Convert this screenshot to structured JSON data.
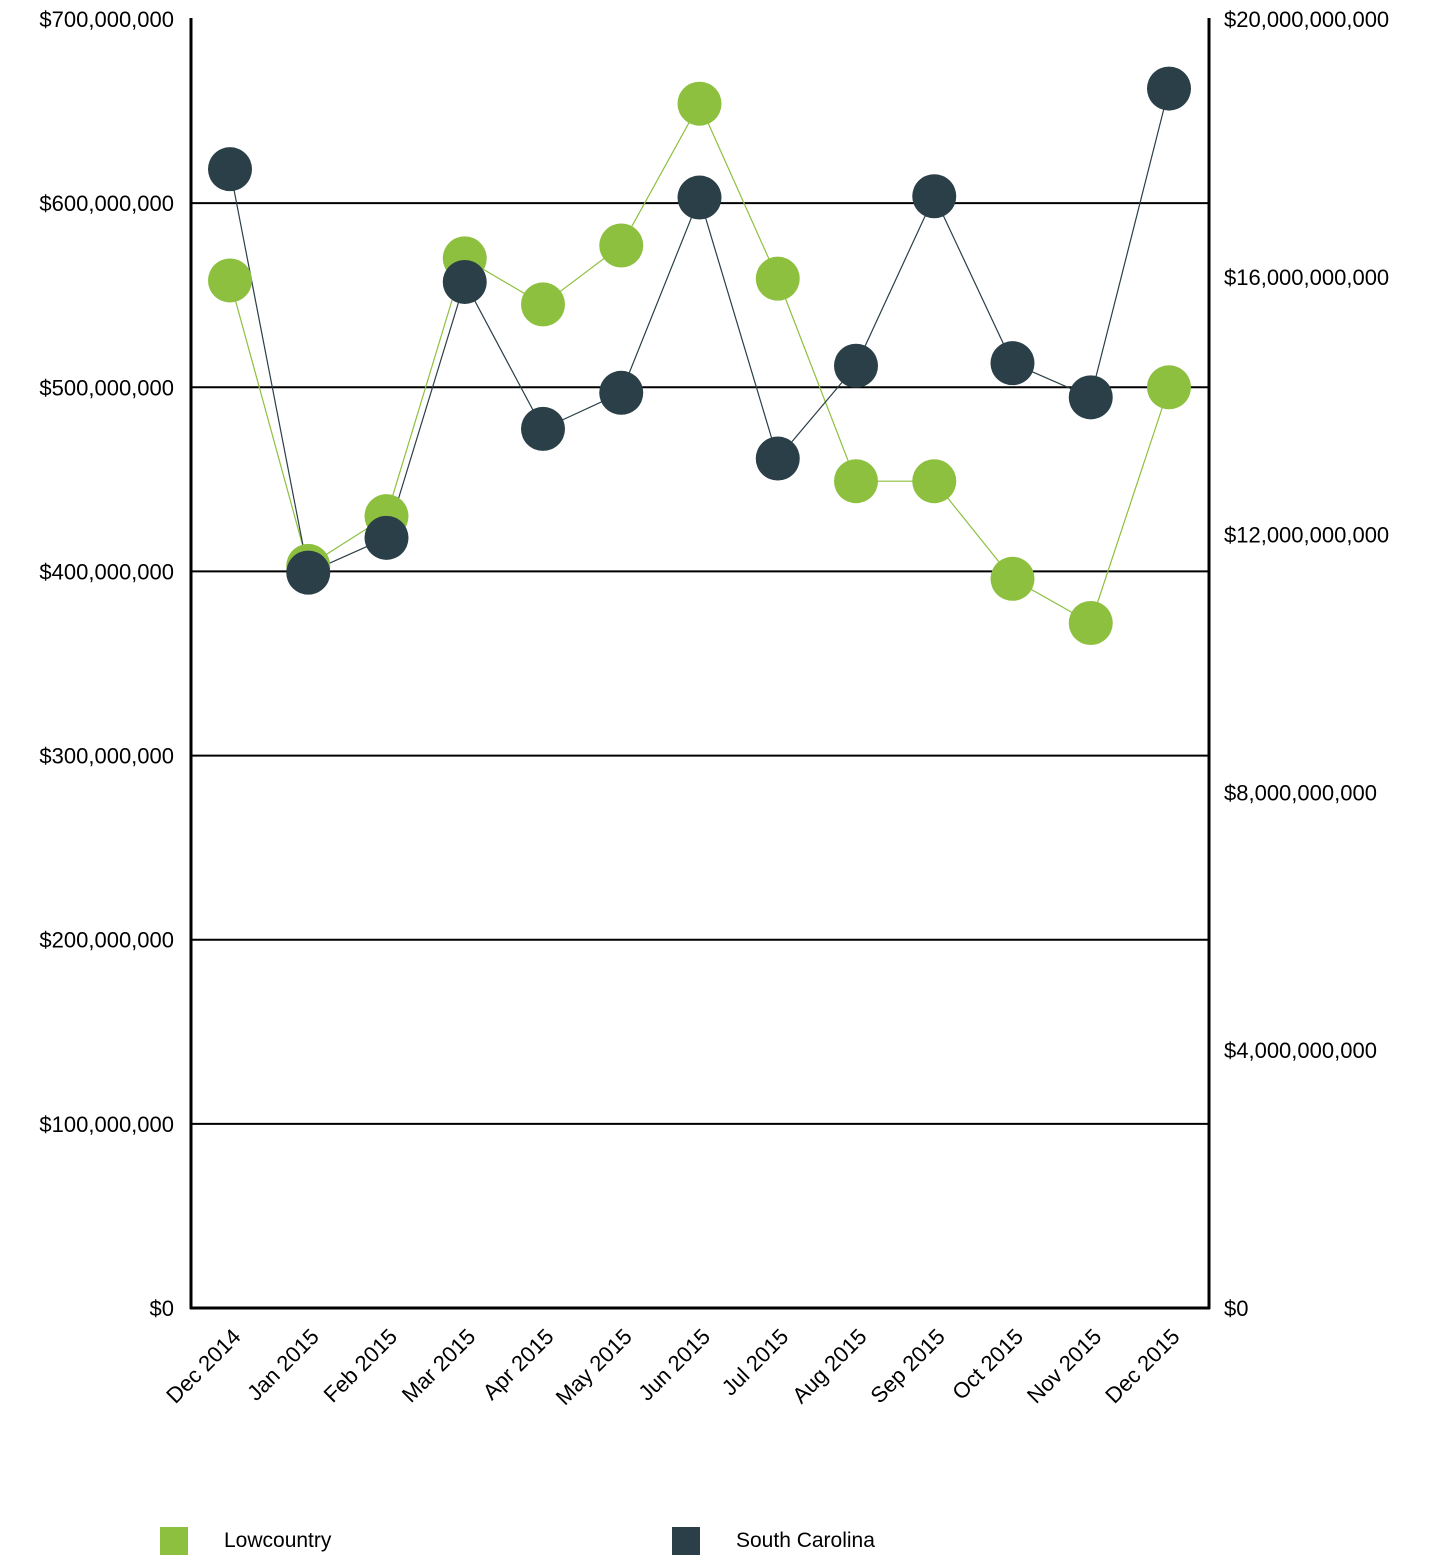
{
  "chart_data": {
    "type": "line",
    "categories": [
      "Dec 2014",
      "Jan 2015",
      "Feb 2015",
      "Mar 2015",
      "Apr 2015",
      "May 2015",
      "Jun 2015",
      "Jul 2015",
      "Aug 2015",
      "Sep 2015",
      "Oct 2015",
      "Nov 2015",
      "Dec 2015"
    ],
    "series": [
      {
        "name": "Lowcountry",
        "axis": "left",
        "color": "#8dc03f",
        "values": [
          558000000,
          403000000,
          430000000,
          570000000,
          545000000,
          577000000,
          654000000,
          559000000,
          449000000,
          449000000,
          396000000,
          372000000,
          500000000
        ]
      },
      {
        "name": "South Carolina",
        "axis": "right",
        "color": "#2a3f47",
        "values": [
          17670000000,
          11410000000,
          11950000000,
          15920000000,
          13640000000,
          14200000000,
          17230000000,
          13180000000,
          14620000000,
          17250000000,
          14660000000,
          14130000000,
          18920000000
        ]
      }
    ],
    "y_left": {
      "min": 0,
      "max": 700000000,
      "ticks": [
        0,
        100000000,
        200000000,
        300000000,
        400000000,
        500000000,
        600000000,
        700000000
      ],
      "tick_labels": [
        "$0",
        "$100,000,000",
        "$200,000,000",
        "$300,000,000",
        "$400,000,000",
        "$500,000,000",
        "$600,000,000",
        "$700,000,000"
      ]
    },
    "y_right": {
      "min": 0,
      "max": 20000000000,
      "ticks": [
        0,
        4000000000,
        8000000000,
        12000000000,
        16000000000,
        20000000000
      ],
      "tick_labels": [
        "$0",
        "$4,000,000,000",
        "$8,000,000,000",
        "$12,000,000,000",
        "$16,000,000,000",
        "$20,000,000,000"
      ]
    },
    "grid": true,
    "legend_position": "bottom"
  },
  "legend": {
    "items": [
      {
        "label": "Lowcountry",
        "color": "#8dc03f"
      },
      {
        "label": "South Carolina",
        "color": "#2a3f47"
      }
    ]
  }
}
